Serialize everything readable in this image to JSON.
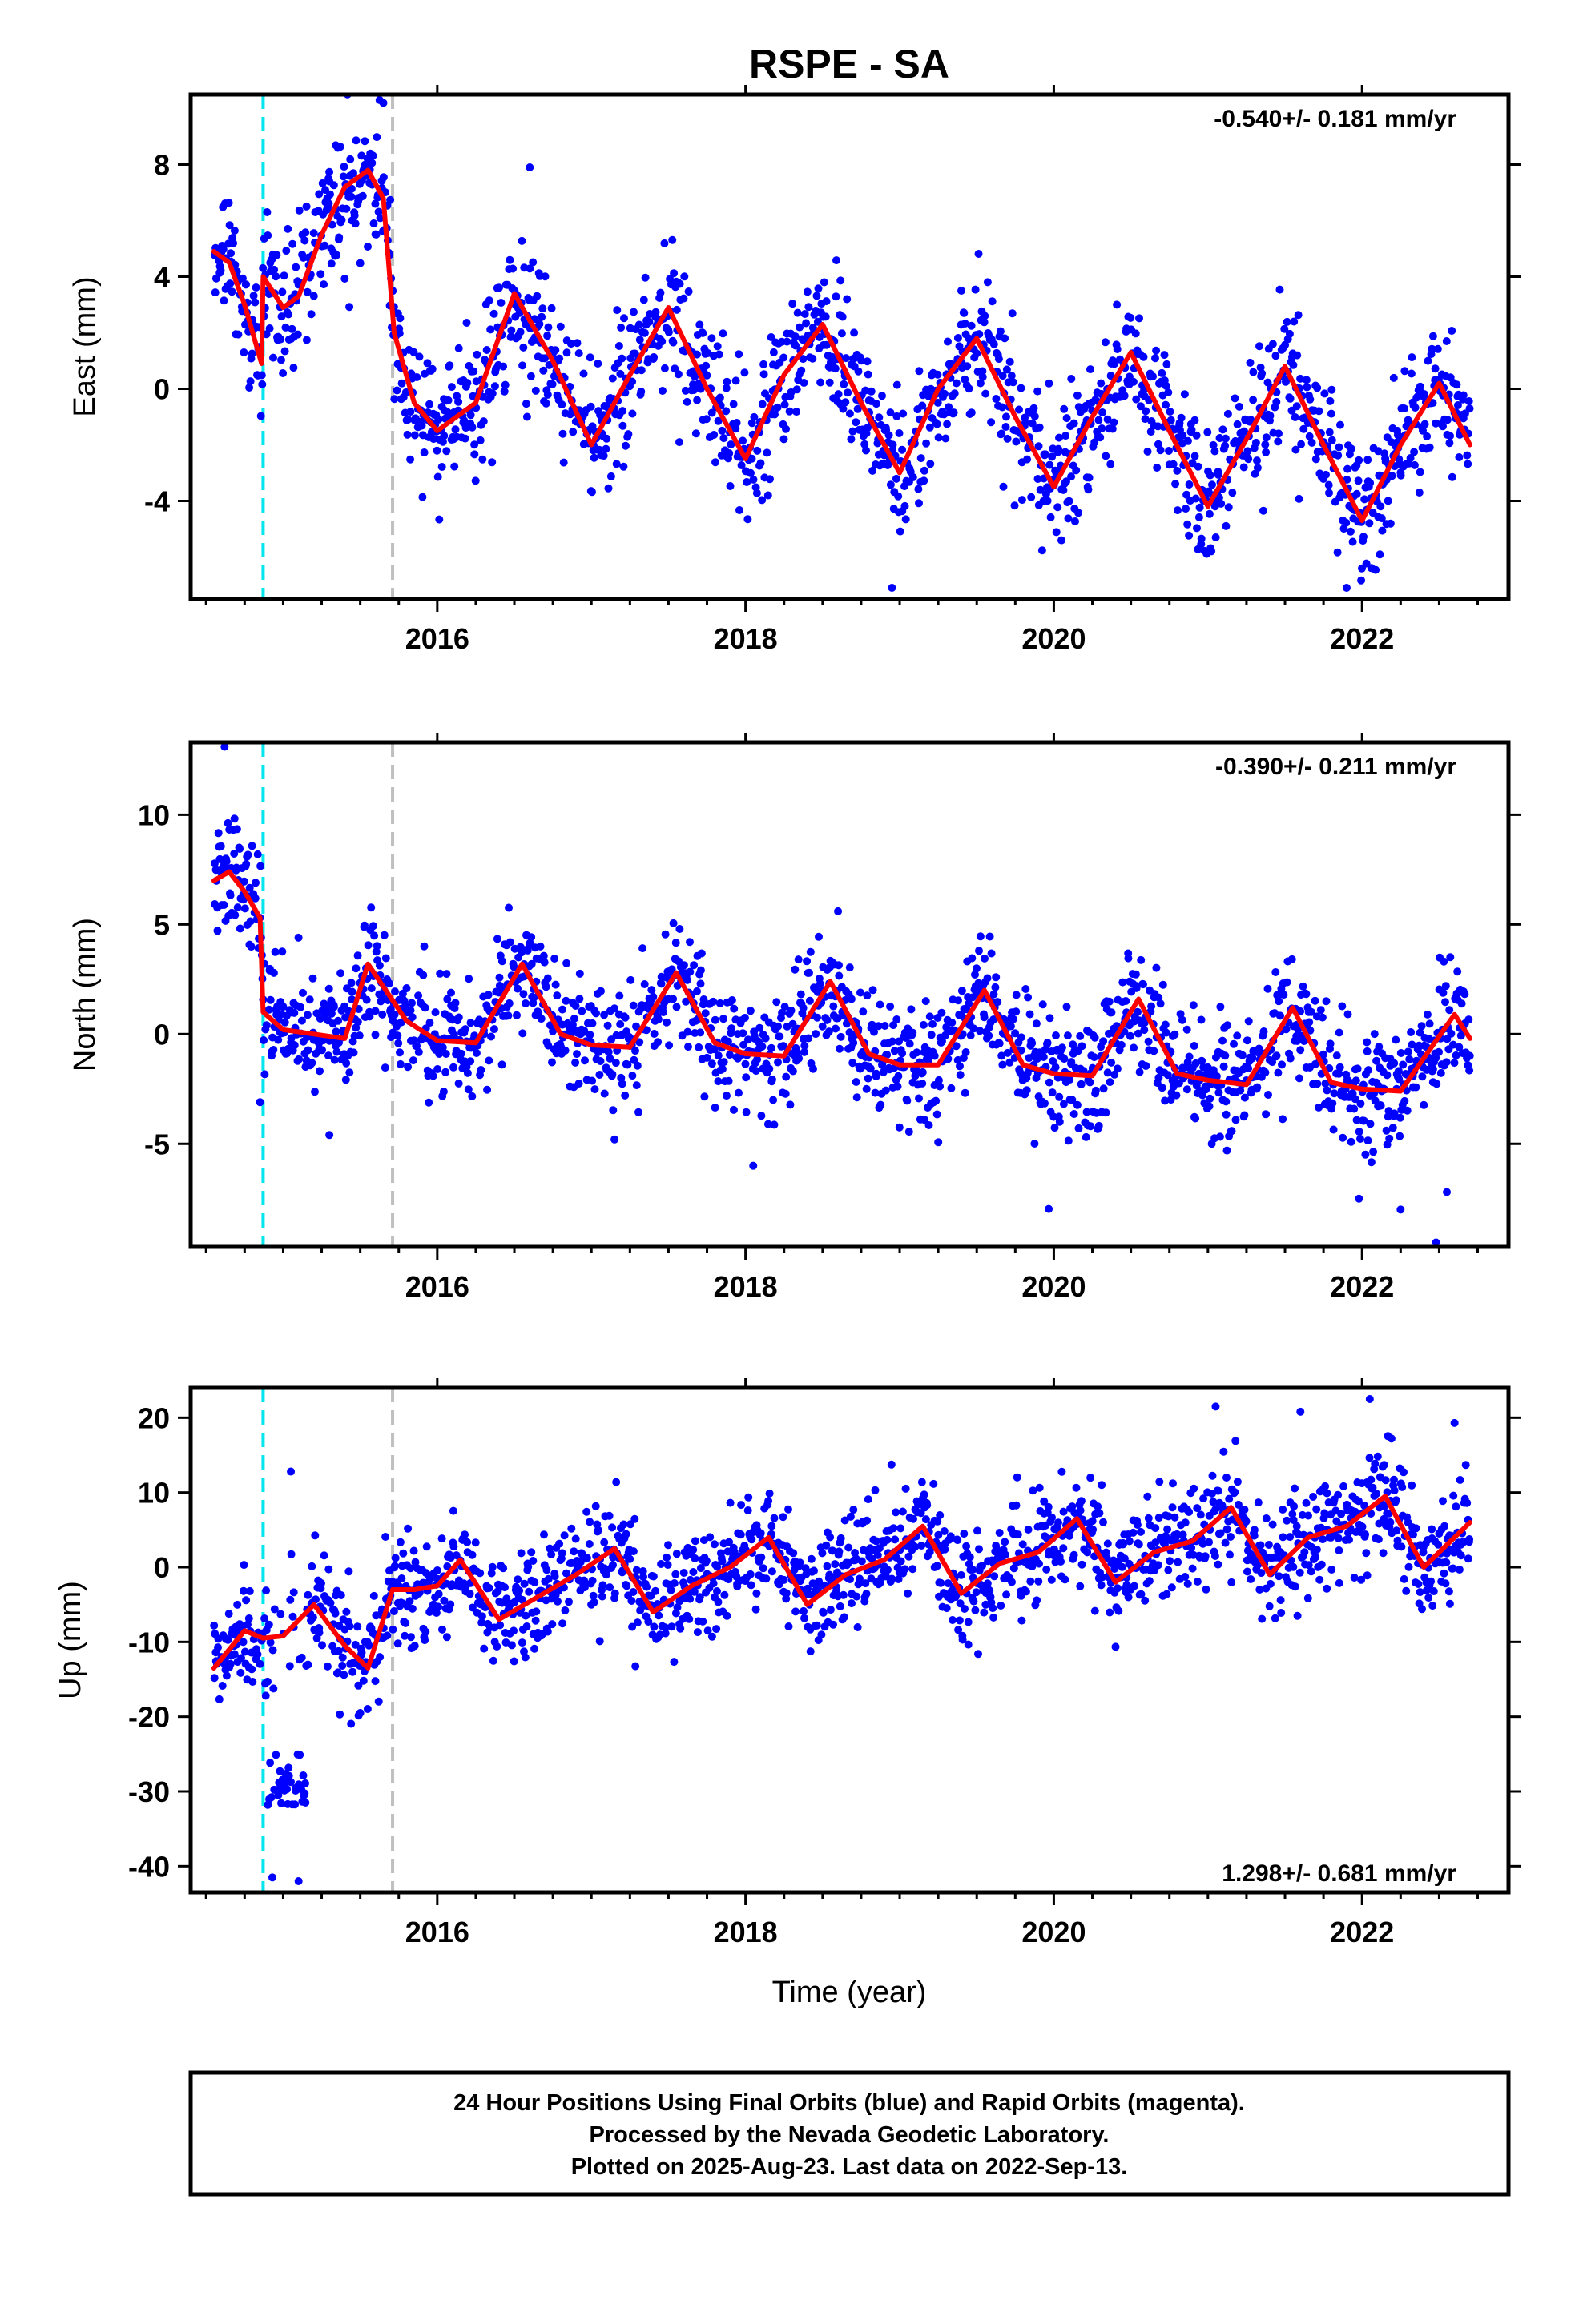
{
  "title": "RSPE - SA",
  "xlabel": "Time (year)",
  "footer": {
    "line1": "24 Hour Positions Using Final Orbits (blue) and Rapid Orbits (magenta).",
    "line2": "Processed by the Nevada Geodetic Laboratory.",
    "line3": "Plotted on 2025-Aug-23. Last data on 2022-Sep-13."
  },
  "colors": {
    "points": "#0000ff",
    "model": "#ff0000",
    "equipment_change": "#00e5ee",
    "other_event": "#c0c0c0"
  },
  "chart_data": [
    {
      "type": "scatter",
      "name": "east",
      "ylabel": "East (mm)",
      "rate_text": "-0.540+/- 0.181 mm/yr",
      "rate_position": "top-right",
      "xlim": [
        2014.4,
        2022.95
      ],
      "ylim": [
        -7.5,
        10.5
      ],
      "x_ticks": [
        2016,
        2018,
        2020,
        2022
      ],
      "y_ticks": [
        -4,
        0,
        4,
        8
      ],
      "event_lines": [
        {
          "x": 2014.87,
          "kind": "equipment_change"
        },
        {
          "x": 2015.71,
          "kind": "other_event"
        }
      ],
      "model_curve": {
        "x": [
          2014.55,
          2014.65,
          2014.75,
          2014.86,
          2014.87,
          2015.0,
          2015.1,
          2015.25,
          2015.4,
          2015.55,
          2015.65,
          2015.72,
          2015.85,
          2016.0,
          2016.25,
          2016.5,
          2016.75,
          2017.0,
          2017.25,
          2017.5,
          2017.75,
          2018.0,
          2018.25,
          2018.5,
          2018.75,
          2019.0,
          2019.25,
          2019.5,
          2019.75,
          2020.0,
          2020.25,
          2020.5,
          2020.75,
          2021.0,
          2021.25,
          2021.5,
          2021.75,
          2022.0,
          2022.25,
          2022.5,
          2022.7
        ],
        "y": [
          4.9,
          4.5,
          3.0,
          0.9,
          4.0,
          2.9,
          3.3,
          5.5,
          7.2,
          7.8,
          6.8,
          2.0,
          -0.5,
          -1.5,
          -0.5,
          3.4,
          1.0,
          -2.0,
          0.5,
          2.9,
          0.0,
          -2.5,
          0.5,
          2.3,
          -0.5,
          -3.0,
          0.0,
          1.8,
          -1.0,
          -3.5,
          -1.0,
          1.3,
          -1.5,
          -4.2,
          -1.8,
          0.8,
          -2.0,
          -4.7,
          -2.0,
          0.2,
          -2.0
        ]
      },
      "scatter_spread": 1.2,
      "scatter_outliers": {
        "x": [
          2015.65,
          2016.6,
          2018.95,
          2021.9,
          2015.3,
          2019.4
        ],
        "y": [
          10.2,
          7.9,
          -7.1,
          -7.1,
          7.4,
          3.5
        ]
      }
    },
    {
      "type": "scatter",
      "name": "north",
      "ylabel": "North (mm)",
      "rate_text": "-0.390+/- 0.211 mm/yr",
      "rate_position": "top-right",
      "xlim": [
        2014.4,
        2022.95
      ],
      "ylim": [
        -9.7,
        13.3
      ],
      "x_ticks": [
        2016,
        2018,
        2020,
        2022
      ],
      "y_ticks": [
        -5,
        0,
        5,
        10
      ],
      "event_lines": [
        {
          "x": 2014.87,
          "kind": "equipment_change"
        },
        {
          "x": 2015.71,
          "kind": "other_event"
        }
      ],
      "model_curve": {
        "x": [
          2014.55,
          2014.65,
          2014.75,
          2014.85,
          2014.87,
          2015.0,
          2015.2,
          2015.4,
          2015.55,
          2015.8,
          2016.0,
          2016.25,
          2016.55,
          2016.8,
          2017.0,
          2017.25,
          2017.55,
          2017.8,
          2018.0,
          2018.25,
          2018.55,
          2018.8,
          2019.0,
          2019.25,
          2019.55,
          2019.8,
          2020.0,
          2020.25,
          2020.55,
          2020.8,
          2021.0,
          2021.25,
          2021.55,
          2021.8,
          2022.0,
          2022.25,
          2022.6,
          2022.7
        ],
        "y": [
          7.0,
          7.4,
          6.5,
          5.3,
          1.0,
          0.2,
          0.0,
          -0.2,
          3.2,
          0.6,
          -0.3,
          -0.4,
          3.2,
          0.0,
          -0.5,
          -0.6,
          2.8,
          -0.4,
          -0.9,
          -1.0,
          2.4,
          -0.9,
          -1.4,
          -1.4,
          2.0,
          -1.4,
          -1.8,
          -1.9,
          1.6,
          -1.8,
          -2.1,
          -2.3,
          1.2,
          -2.2,
          -2.5,
          -2.6,
          0.9,
          -0.2
        ]
      },
      "scatter_spread": 1.3,
      "scatter_outliers": {
        "x": [
          2014.62,
          2014.85,
          2015.3,
          2017.15,
          2018.05,
          2018.6,
          2021.98,
          2022.25,
          2022.48,
          2022.55
        ],
        "y": [
          13.1,
          -3.1,
          -4.6,
          -4.8,
          -6.0,
          5.6,
          -7.5,
          -8.0,
          -9.5,
          -7.2
        ]
      }
    },
    {
      "type": "scatter",
      "name": "up",
      "ylabel": "Up (mm)",
      "rate_text": "1.298+/- 0.681 mm/yr",
      "rate_position": "bottom-right",
      "xlim": [
        2014.4,
        2022.95
      ],
      "ylim": [
        -43.5,
        24.0
      ],
      "x_ticks": [
        2016,
        2018,
        2020,
        2022
      ],
      "y_ticks": [
        -40,
        -30,
        -20,
        -10,
        0,
        10,
        20
      ],
      "event_lines": [
        {
          "x": 2014.87,
          "kind": "equipment_change"
        },
        {
          "x": 2015.71,
          "kind": "other_event"
        }
      ],
      "model_curve": {
        "x": [
          2014.55,
          2014.75,
          2014.87,
          2015.0,
          2015.2,
          2015.4,
          2015.55,
          2015.71,
          2015.85,
          2016.0,
          2016.15,
          2016.4,
          2016.65,
          2016.9,
          2017.15,
          2017.4,
          2017.65,
          2017.9,
          2018.15,
          2018.4,
          2018.65,
          2018.9,
          2019.15,
          2019.4,
          2019.65,
          2019.9,
          2020.15,
          2020.4,
          2020.65,
          2020.9,
          2021.15,
          2021.4,
          2021.65,
          2021.9,
          2022.15,
          2022.4,
          2022.7
        ],
        "y": [
          -13.5,
          -8.5,
          -9.5,
          -9.2,
          -5.0,
          -10.5,
          -13.5,
          -3.0,
          -3.0,
          -2.5,
          1.0,
          -7.0,
          -4.0,
          -1.0,
          2.5,
          -6.0,
          -2.5,
          0.0,
          4.0,
          -5.0,
          -1.0,
          1.0,
          5.5,
          -3.5,
          0.5,
          2.0,
          6.5,
          -2.0,
          2.0,
          3.5,
          8.0,
          -1.0,
          4.0,
          5.5,
          9.5,
          0.0,
          6.0
        ]
      },
      "scatter_spread": 3.6,
      "cluster": {
        "x_start": 2014.9,
        "x_end": 2015.15,
        "y_center": -29.0,
        "y_spread": 3.5
      },
      "scatter_outliers": {
        "x": [
          2014.93,
          2015.1,
          2015.5,
          2015.05,
          2021.05,
          2022.05,
          2021.6,
          2022.6
        ],
        "y": [
          -41.5,
          -42.0,
          -19.5,
          12.8,
          21.5,
          22.5,
          20.8,
          19.3
        ]
      }
    }
  ]
}
